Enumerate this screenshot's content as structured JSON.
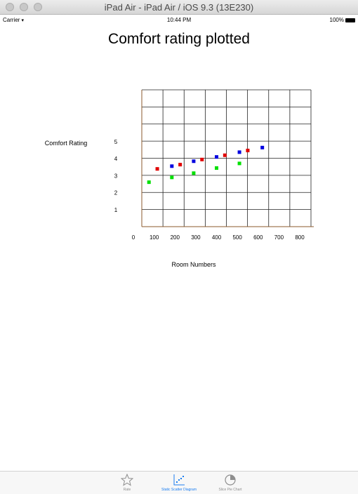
{
  "window": {
    "title": "iPad Air - iPad Air / iOS 9.3 (13E230)"
  },
  "status_bar": {
    "carrier": "Carrier",
    "time": "10:44 PM",
    "battery": "100%"
  },
  "chart_data": {
    "type": "scatter",
    "title": "Comfort rating plotted",
    "xlabel": "Room Numbers",
    "ylabel": "Comfort Rating",
    "x_ticks": [
      "0",
      "100",
      "200",
      "300",
      "400",
      "500",
      "600",
      "700",
      "800"
    ],
    "y_ticks": [
      "1",
      "2",
      "3",
      "4",
      "5"
    ],
    "xlim": [
      0,
      800
    ],
    "ylim": [
      0,
      8
    ],
    "grid": true,
    "series": [
      {
        "color": "#00e000",
        "points": [
          [
            75,
            2.62
          ],
          [
            185,
            2.9
          ],
          [
            290,
            3.15
          ],
          [
            400,
            3.45
          ],
          [
            510,
            3.72
          ]
        ]
      },
      {
        "color": "#e00000",
        "points": [
          [
            115,
            3.4
          ],
          [
            225,
            3.65
          ],
          [
            330,
            3.95
          ],
          [
            440,
            4.2
          ],
          [
            550,
            4.48
          ]
        ]
      },
      {
        "color": "#0000e0",
        "points": [
          [
            185,
            3.56
          ],
          [
            290,
            3.85
          ],
          [
            400,
            4.1
          ],
          [
            510,
            4.38
          ],
          [
            620,
            4.65
          ]
        ]
      }
    ]
  },
  "tab_bar": {
    "tabs": [
      {
        "label": "Rate",
        "icon": "star-icon",
        "active": false
      },
      {
        "label": "Static Scatter Diagram",
        "icon": "scatter-chart-icon",
        "active": true
      },
      {
        "label": "Slice Pie Chart",
        "icon": "pie-chart-icon",
        "active": false
      }
    ]
  }
}
